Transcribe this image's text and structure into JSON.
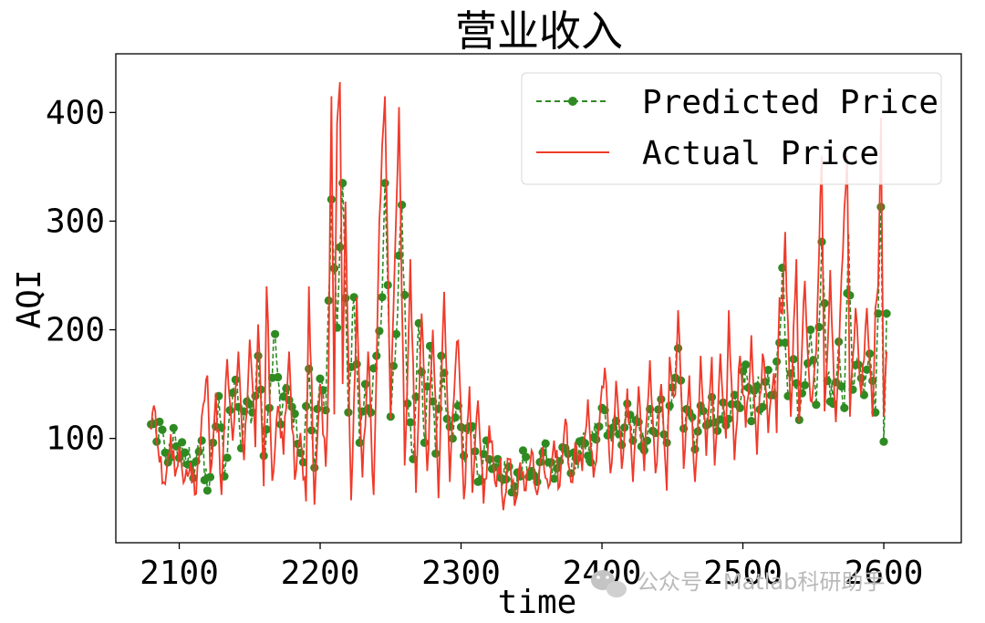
{
  "chart_data": {
    "type": "line",
    "title": "营业收入",
    "xlabel": "time",
    "ylabel": "AQI",
    "xlim": [
      2055,
      2655
    ],
    "ylim": [
      4,
      454
    ],
    "x_ticks": [
      2100,
      2200,
      2300,
      2400,
      2500,
      2600
    ],
    "y_ticks": [
      100,
      200,
      300,
      400
    ],
    "grid": false,
    "legend_position": "top-right",
    "x_start": 2080,
    "x_end": 2600,
    "series": [
      {
        "name": "Predicted Price",
        "color": "#2e8b22",
        "style": "dashed",
        "marker": "circle",
        "anchors": [
          [
            2080,
            113
          ],
          [
            2084,
            97
          ],
          [
            2088,
            108
          ],
          [
            2092,
            78
          ],
          [
            2097,
            104
          ],
          [
            2100,
            82
          ],
          [
            2104,
            87
          ],
          [
            2108,
            76
          ],
          [
            2112,
            79
          ],
          [
            2116,
            98
          ],
          [
            2120,
            52
          ],
          [
            2124,
            96
          ],
          [
            2128,
            139
          ],
          [
            2132,
            65
          ],
          [
            2136,
            126
          ],
          [
            2140,
            154
          ],
          [
            2144,
            91
          ],
          [
            2148,
            134
          ],
          [
            2152,
            124
          ],
          [
            2156,
            176
          ],
          [
            2160,
            84
          ],
          [
            2164,
            128
          ],
          [
            2168,
            196
          ],
          [
            2172,
            113
          ],
          [
            2176,
            146
          ],
          [
            2180,
            129
          ],
          [
            2184,
            95
          ],
          [
            2188,
            78
          ],
          [
            2192,
            164
          ],
          [
            2196,
            73
          ],
          [
            2200,
            155
          ],
          [
            2204,
            126
          ],
          [
            2208,
            320
          ],
          [
            2212,
            202
          ],
          [
            2214,
            276
          ],
          [
            2216,
            335
          ],
          [
            2220,
            124
          ],
          [
            2224,
            230
          ],
          [
            2228,
            96
          ],
          [
            2232,
            150
          ],
          [
            2236,
            124
          ],
          [
            2240,
            176
          ],
          [
            2244,
            230
          ],
          [
            2246,
            335
          ],
          [
            2250,
            120
          ],
          [
            2254,
            196
          ],
          [
            2258,
            315
          ],
          [
            2262,
            132
          ],
          [
            2266,
            81
          ],
          [
            2270,
            206
          ],
          [
            2274,
            96
          ],
          [
            2278,
            185
          ],
          [
            2282,
            86
          ],
          [
            2286,
            176
          ],
          [
            2290,
            118
          ],
          [
            2294,
            100
          ],
          [
            2298,
            130
          ],
          [
            2302,
            84
          ],
          [
            2306,
            111
          ],
          [
            2310,
            88
          ],
          [
            2314,
            61
          ],
          [
            2318,
            98
          ],
          [
            2322,
            72
          ],
          [
            2326,
            81
          ],
          [
            2330,
            62
          ],
          [
            2334,
            74
          ],
          [
            2338,
            56
          ],
          [
            2342,
            65
          ],
          [
            2346,
            83
          ],
          [
            2350,
            70
          ],
          [
            2354,
            60
          ],
          [
            2358,
            87
          ],
          [
            2362,
            78
          ],
          [
            2366,
            63
          ],
          [
            2370,
            79
          ],
          [
            2374,
            91
          ],
          [
            2378,
            68
          ],
          [
            2382,
            81
          ],
          [
            2386,
            98
          ],
          [
            2390,
            84
          ],
          [
            2394,
            101
          ],
          [
            2398,
            111
          ],
          [
            2402,
            126
          ],
          [
            2406,
            104
          ],
          [
            2410,
            116
          ],
          [
            2414,
            94
          ],
          [
            2418,
            132
          ],
          [
            2422,
            98
          ],
          [
            2426,
            115
          ],
          [
            2430,
            89
          ],
          [
            2434,
            127
          ],
          [
            2438,
            105
          ],
          [
            2442,
            136
          ],
          [
            2446,
            96
          ],
          [
            2450,
            147
          ],
          [
            2454,
            183
          ],
          [
            2458,
            109
          ],
          [
            2462,
            124
          ],
          [
            2466,
            90
          ],
          [
            2470,
            130
          ],
          [
            2474,
            112
          ],
          [
            2478,
            138
          ],
          [
            2482,
            107
          ],
          [
            2486,
            133
          ],
          [
            2490,
            118
          ],
          [
            2494,
            140
          ],
          [
            2498,
            128
          ],
          [
            2502,
            168
          ],
          [
            2506,
            116
          ],
          [
            2510,
            148
          ],
          [
            2514,
            129
          ],
          [
            2518,
            163
          ],
          [
            2522,
            140
          ],
          [
            2526,
            188
          ],
          [
            2528,
            257
          ],
          [
            2532,
            139
          ],
          [
            2536,
            173
          ],
          [
            2540,
            117
          ],
          [
            2544,
            149
          ],
          [
            2548,
            200
          ],
          [
            2552,
            131
          ],
          [
            2556,
            281
          ],
          [
            2560,
            153
          ],
          [
            2564,
            132
          ],
          [
            2568,
            189
          ],
          [
            2572,
            128
          ],
          [
            2575,
            289
          ],
          [
            2578,
            145
          ],
          [
            2582,
            168
          ],
          [
            2586,
            140
          ],
          [
            2590,
            178
          ],
          [
            2594,
            124
          ],
          [
            2596,
            215
          ],
          [
            2598,
            313
          ],
          [
            2600,
            97
          ],
          [
            2602,
            215
          ]
        ]
      },
      {
        "name": "Actual Price",
        "color": "#f03a2a",
        "style": "solid",
        "marker": "none",
        "anchors": [
          [
            2080,
            108
          ],
          [
            2083,
            125
          ],
          [
            2086,
            78
          ],
          [
            2090,
            58
          ],
          [
            2094,
            104
          ],
          [
            2097,
            65
          ],
          [
            2100,
            92
          ],
          [
            2104,
            62
          ],
          [
            2108,
            78
          ],
          [
            2112,
            49
          ],
          [
            2116,
            120
          ],
          [
            2120,
            158
          ],
          [
            2122,
            68
          ],
          [
            2126,
            142
          ],
          [
            2130,
            48
          ],
          [
            2134,
            173
          ],
          [
            2138,
            98
          ],
          [
            2142,
            180
          ],
          [
            2146,
            80
          ],
          [
            2150,
            191
          ],
          [
            2154,
            92
          ],
          [
            2156,
            205
          ],
          [
            2160,
            56
          ],
          [
            2162,
            240
          ],
          [
            2166,
            61
          ],
          [
            2170,
            130
          ],
          [
            2174,
            85
          ],
          [
            2178,
            180
          ],
          [
            2182,
            62
          ],
          [
            2186,
            105
          ],
          [
            2190,
            42
          ],
          [
            2192,
            240
          ],
          [
            2196,
            39
          ],
          [
            2200,
            150
          ],
          [
            2204,
            74
          ],
          [
            2206,
            162
          ],
          [
            2208,
            415
          ],
          [
            2210,
            122
          ],
          [
            2212,
            390
          ],
          [
            2214,
            428
          ],
          [
            2216,
            150
          ],
          [
            2218,
            318
          ],
          [
            2222,
            43
          ],
          [
            2226,
            230
          ],
          [
            2230,
            64
          ],
          [
            2234,
            180
          ],
          [
            2238,
            48
          ],
          [
            2242,
            300
          ],
          [
            2246,
            415
          ],
          [
            2250,
            118
          ],
          [
            2254,
            310
          ],
          [
            2256,
            405
          ],
          [
            2260,
            75
          ],
          [
            2264,
            265
          ],
          [
            2268,
            50
          ],
          [
            2272,
            215
          ],
          [
            2276,
            70
          ],
          [
            2280,
            200
          ],
          [
            2284,
            45
          ],
          [
            2288,
            235
          ],
          [
            2292,
            60
          ],
          [
            2296,
            165
          ],
          [
            2298,
            190
          ],
          [
            2302,
            44
          ],
          [
            2306,
            148
          ],
          [
            2308,
            50
          ],
          [
            2312,
            135
          ],
          [
            2316,
            40
          ],
          [
            2320,
            112
          ],
          [
            2324,
            60
          ],
          [
            2328,
            82
          ],
          [
            2330,
            34
          ],
          [
            2334,
            81
          ],
          [
            2338,
            38
          ],
          [
            2342,
            78
          ],
          [
            2346,
            52
          ],
          [
            2350,
            89
          ],
          [
            2354,
            48
          ],
          [
            2358,
            92
          ],
          [
            2362,
            55
          ],
          [
            2366,
            98
          ],
          [
            2370,
            56
          ],
          [
            2374,
            118
          ],
          [
            2378,
            60
          ],
          [
            2382,
            92
          ],
          [
            2386,
            70
          ],
          [
            2390,
            136
          ],
          [
            2394,
            64
          ],
          [
            2398,
            110
          ],
          [
            2402,
            165
          ],
          [
            2406,
            68
          ],
          [
            2410,
            153
          ],
          [
            2414,
            72
          ],
          [
            2418,
            146
          ],
          [
            2422,
            60
          ],
          [
            2426,
            148
          ],
          [
            2430,
            70
          ],
          [
            2434,
            172
          ],
          [
            2438,
            68
          ],
          [
            2442,
            150
          ],
          [
            2446,
            52
          ],
          [
            2448,
            175
          ],
          [
            2452,
            140
          ],
          [
            2454,
            218
          ],
          [
            2458,
            72
          ],
          [
            2462,
            158
          ],
          [
            2466,
            60
          ],
          [
            2470,
            176
          ],
          [
            2474,
            84
          ],
          [
            2478,
            175
          ],
          [
            2480,
            75
          ],
          [
            2484,
            178
          ],
          [
            2488,
            100
          ],
          [
            2490,
            218
          ],
          [
            2494,
            80
          ],
          [
            2498,
            176
          ],
          [
            2502,
            110
          ],
          [
            2506,
            195
          ],
          [
            2510,
            85
          ],
          [
            2514,
            178
          ],
          [
            2518,
            105
          ],
          [
            2522,
            160
          ],
          [
            2524,
            105
          ],
          [
            2526,
            230
          ],
          [
            2528,
            215
          ],
          [
            2530,
            290
          ],
          [
            2534,
            120
          ],
          [
            2538,
            265
          ],
          [
            2540,
            115
          ],
          [
            2544,
            245
          ],
          [
            2548,
            135
          ],
          [
            2552,
            180
          ],
          [
            2556,
            360
          ],
          [
            2558,
            125
          ],
          [
            2562,
            255
          ],
          [
            2566,
            115
          ],
          [
            2570,
            250
          ],
          [
            2574,
            360
          ],
          [
            2576,
            120
          ],
          [
            2580,
            220
          ],
          [
            2584,
            140
          ],
          [
            2588,
            220
          ],
          [
            2592,
            120
          ],
          [
            2594,
            220
          ],
          [
            2596,
            240
          ],
          [
            2598,
            395
          ],
          [
            2600,
            120
          ],
          [
            2602,
            180
          ]
        ]
      }
    ]
  },
  "watermark": {
    "text": "公众号 · Matlab科研助手",
    "icon": "wechat-icon"
  }
}
